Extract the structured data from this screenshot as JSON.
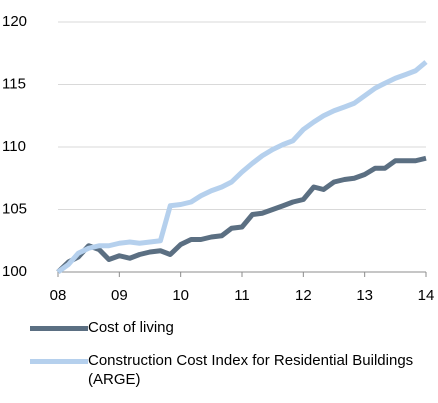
{
  "chart_data": {
    "type": "line",
    "x": [
      8,
      8.17,
      8.33,
      8.5,
      8.67,
      8.83,
      9,
      9.17,
      9.33,
      9.5,
      9.67,
      9.83,
      10,
      10.17,
      10.33,
      10.5,
      10.67,
      10.83,
      11,
      11.17,
      11.33,
      11.5,
      11.67,
      11.83,
      12,
      12.17,
      12.33,
      12.5,
      12.67,
      12.83,
      13,
      13.17,
      13.33,
      13.5,
      13.67,
      13.83,
      14
    ],
    "series": [
      {
        "name": "Cost of living",
        "color": "#5b6f82",
        "values": [
          100.0,
          100.8,
          101.2,
          102.1,
          101.8,
          101.0,
          101.3,
          101.1,
          101.4,
          101.6,
          101.7,
          101.4,
          102.2,
          102.6,
          102.6,
          102.8,
          102.9,
          103.5,
          103.6,
          104.6,
          104.7,
          105.0,
          105.3,
          105.6,
          105.8,
          106.8,
          106.6,
          107.2,
          107.4,
          107.5,
          107.8,
          108.3,
          108.3,
          108.9,
          108.9,
          108.9,
          109.1
        ]
      },
      {
        "name": "Construction Cost Index for Residential Buildings (ARGE)",
        "color": "#b5d0ed",
        "values": [
          100.0,
          100.6,
          101.5,
          101.9,
          102.1,
          102.1,
          102.3,
          102.4,
          102.3,
          102.4,
          102.5,
          105.3,
          105.4,
          105.6,
          106.1,
          106.5,
          106.8,
          107.2,
          108.0,
          108.7,
          109.3,
          109.8,
          110.2,
          110.5,
          111.4,
          112.0,
          112.5,
          112.9,
          113.2,
          113.5,
          114.1,
          114.7,
          115.1,
          115.5,
          115.8,
          116.1,
          116.8
        ]
      }
    ],
    "xlim": [
      8,
      14
    ],
    "xticks": [
      {
        "value": 8,
        "label": "08"
      },
      {
        "value": 9,
        "label": "09"
      },
      10,
      11,
      12,
      13,
      14
    ],
    "ylim": [
      100,
      120
    ],
    "yticks": [
      100,
      105,
      110,
      115,
      120
    ],
    "grid": true,
    "legend": "bottom"
  }
}
